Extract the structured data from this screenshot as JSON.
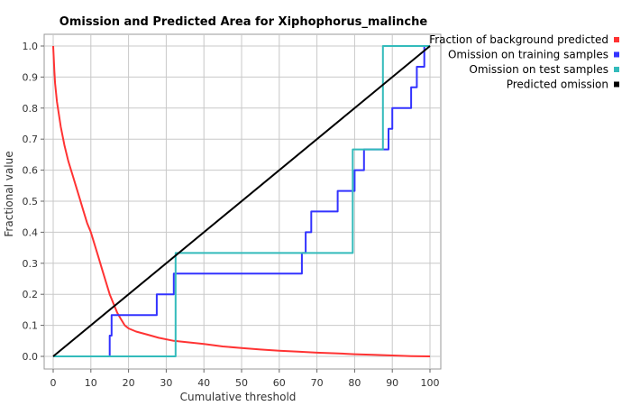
{
  "chart_data": {
    "type": "line",
    "title": "Omission and Predicted Area for Xiphophorus_malinche",
    "xlabel": "Cumulative threshold",
    "ylabel": "Fractional value",
    "xlim": [
      0,
      100
    ],
    "ylim": [
      0,
      1.0
    ],
    "x_ticks": [
      "0",
      "10",
      "20",
      "30",
      "40",
      "50",
      "60",
      "70",
      "80",
      "90",
      "100"
    ],
    "y_ticks": [
      "0.0",
      "0.1",
      "0.2",
      "0.3",
      "0.4",
      "0.5",
      "0.6",
      "0.7",
      "0.8",
      "0.9",
      "1.0"
    ],
    "grid": true,
    "legend_position": "right",
    "series": [
      {
        "name": "Fraction of background predicted",
        "color": "#ff3333",
        "points": [
          [
            0,
            1.0
          ],
          [
            0.3,
            0.92
          ],
          [
            0.5,
            0.88
          ],
          [
            1,
            0.82
          ],
          [
            2,
            0.74
          ],
          [
            3,
            0.68
          ],
          [
            4,
            0.63
          ],
          [
            5,
            0.59
          ],
          [
            6,
            0.55
          ],
          [
            7,
            0.51
          ],
          [
            8,
            0.47
          ],
          [
            9,
            0.43
          ],
          [
            10,
            0.4
          ],
          [
            11,
            0.36
          ],
          [
            12,
            0.32
          ],
          [
            13,
            0.28
          ],
          [
            14,
            0.24
          ],
          [
            15,
            0.2
          ],
          [
            16,
            0.17
          ],
          [
            17,
            0.14
          ],
          [
            18,
            0.12
          ],
          [
            19,
            0.1
          ],
          [
            20,
            0.09
          ],
          [
            22,
            0.08
          ],
          [
            25,
            0.07
          ],
          [
            28,
            0.06
          ],
          [
            32,
            0.05
          ],
          [
            36,
            0.045
          ],
          [
            40,
            0.04
          ],
          [
            45,
            0.032
          ],
          [
            50,
            0.027
          ],
          [
            55,
            0.022
          ],
          [
            60,
            0.018
          ],
          [
            65,
            0.015
          ],
          [
            70,
            0.012
          ],
          [
            75,
            0.01
          ],
          [
            80,
            0.007
          ],
          [
            85,
            0.005
          ],
          [
            90,
            0.003
          ],
          [
            95,
            0.001
          ],
          [
            100,
            0.0
          ]
        ]
      },
      {
        "name": "Omission on training samples",
        "color": "#3333ff",
        "points": [
          [
            0,
            0
          ],
          [
            15,
            0
          ],
          [
            15,
            0.067
          ],
          [
            15.5,
            0.067
          ],
          [
            15.5,
            0.133
          ],
          [
            27.5,
            0.133
          ],
          [
            27.5,
            0.2
          ],
          [
            32,
            0.2
          ],
          [
            32,
            0.267
          ],
          [
            66,
            0.267
          ],
          [
            66,
            0.333
          ],
          [
            67,
            0.333
          ],
          [
            67,
            0.4
          ],
          [
            68.5,
            0.4
          ],
          [
            68.5,
            0.467
          ],
          [
            75.5,
            0.467
          ],
          [
            75.5,
            0.533
          ],
          [
            80,
            0.533
          ],
          [
            80,
            0.6
          ],
          [
            82.5,
            0.6
          ],
          [
            82.5,
            0.667
          ],
          [
            89,
            0.667
          ],
          [
            89,
            0.733
          ],
          [
            90,
            0.733
          ],
          [
            90,
            0.8
          ],
          [
            95,
            0.8
          ],
          [
            95,
            0.867
          ],
          [
            96.5,
            0.867
          ],
          [
            96.5,
            0.933
          ],
          [
            98.5,
            0.933
          ],
          [
            98.5,
            1.0
          ],
          [
            100,
            1.0
          ]
        ]
      },
      {
        "name": "Omission on test samples",
        "color": "#33bbbb",
        "points": [
          [
            0,
            0
          ],
          [
            32.5,
            0
          ],
          [
            32.5,
            0.333
          ],
          [
            79.5,
            0.333
          ],
          [
            79.5,
            0.667
          ],
          [
            87.5,
            0.667
          ],
          [
            87.5,
            1.0
          ],
          [
            100,
            1.0
          ]
        ]
      },
      {
        "name": "Predicted omission",
        "color": "#000000",
        "points": [
          [
            0,
            0
          ],
          [
            100,
            1.0
          ]
        ]
      }
    ]
  }
}
